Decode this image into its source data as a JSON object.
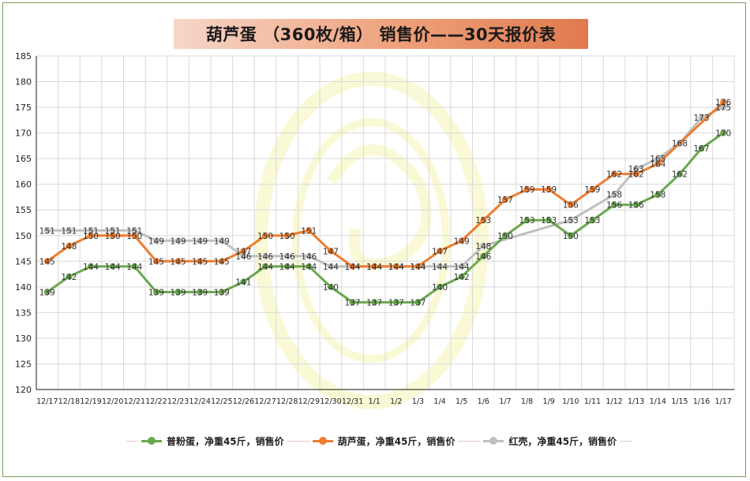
{
  "chart_data": {
    "type": "line",
    "title": "葫芦蛋 （360枚/箱） 销售价——30天报价表",
    "categories": [
      "12/17",
      "12/18",
      "12/19",
      "12/20",
      "12/21",
      "12/22",
      "12/23",
      "12/24",
      "12/25",
      "12/26",
      "12/27",
      "12/28",
      "12/29",
      "12/30",
      "12/31",
      "1/1",
      "1/2",
      "1/3",
      "1/4",
      "1/5",
      "1/6",
      "1/7",
      "1/8",
      "1/9",
      "1/10",
      "1/11",
      "1/12",
      "1/13",
      "1/14",
      "1/15",
      "1/16",
      "1/17"
    ],
    "ylim": [
      120,
      185
    ],
    "yticks": [
      "120",
      "125",
      "130",
      "135",
      "140",
      "145",
      "150",
      "155",
      "160",
      "165",
      "170",
      "175",
      "180",
      "185"
    ],
    "grid": true,
    "legend_position": "bottom",
    "series": [
      {
        "name": "普粉蛋，净重45斤，销售价",
        "color": "#6aa84f",
        "values": [
          139,
          142,
          144,
          144,
          144,
          139,
          139,
          139,
          139,
          141,
          144,
          144,
          144,
          140,
          137,
          137,
          137,
          137,
          140,
          142,
          146,
          150,
          153,
          153,
          150,
          153,
          156,
          156,
          158,
          162,
          167,
          170
        ]
      },
      {
        "name": "葫芦蛋，净重45斤，销售价",
        "color": "#ed7d31",
        "values": [
          145,
          148,
          150,
          150,
          150,
          145,
          145,
          145,
          145,
          147,
          150,
          150,
          151,
          147,
          144,
          144,
          144,
          144,
          147,
          149,
          153,
          157,
          159,
          159,
          156,
          159,
          162,
          162,
          164,
          null,
          null,
          176
        ]
      },
      {
        "name": "红壳，净重45斤，销售价",
        "color": "#bfbfbf",
        "values": [
          151,
          151,
          151,
          151,
          151,
          149,
          149,
          149,
          149,
          146,
          146,
          146,
          146,
          144,
          144,
          144,
          144,
          144,
          144,
          144,
          148,
          null,
          null,
          null,
          153,
          null,
          158,
          163,
          165,
          168,
          173,
          175
        ]
      }
    ]
  }
}
